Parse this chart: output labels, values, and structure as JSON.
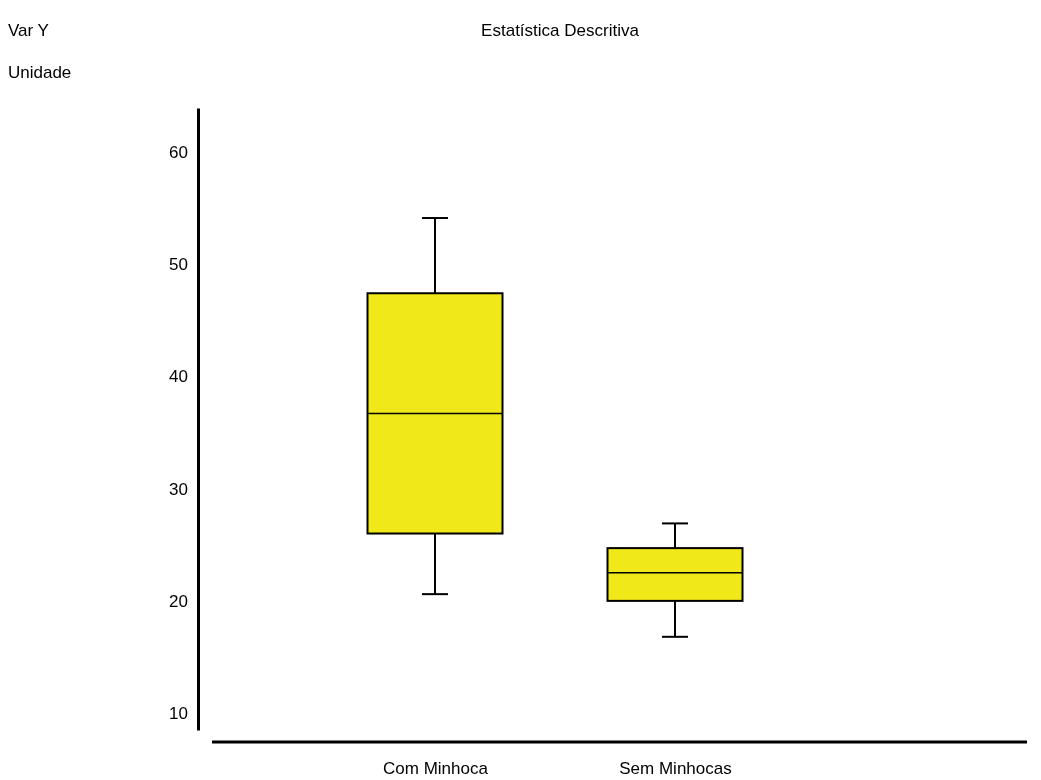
{
  "chart_data": {
    "type": "box",
    "title": "Estatística Descritiva",
    "annotations": [
      "Var Y",
      "Unidade"
    ],
    "categories": [
      "Com Minhoca",
      "Sem Minhocas"
    ],
    "series": [
      {
        "color": "#f0e818",
        "boxes": [
          {
            "low": 20.6,
            "q1": 26.0,
            "median": 36.7,
            "q3": 47.4,
            "high": 54.1
          },
          {
            "low": 16.8,
            "q1": 20.0,
            "median": 22.5,
            "q3": 24.7,
            "high": 26.9
          }
        ]
      }
    ],
    "ylim": [
      8.5,
      63.9
    ],
    "yticks": [
      10,
      20,
      30,
      40,
      50,
      60
    ],
    "grid": false
  }
}
